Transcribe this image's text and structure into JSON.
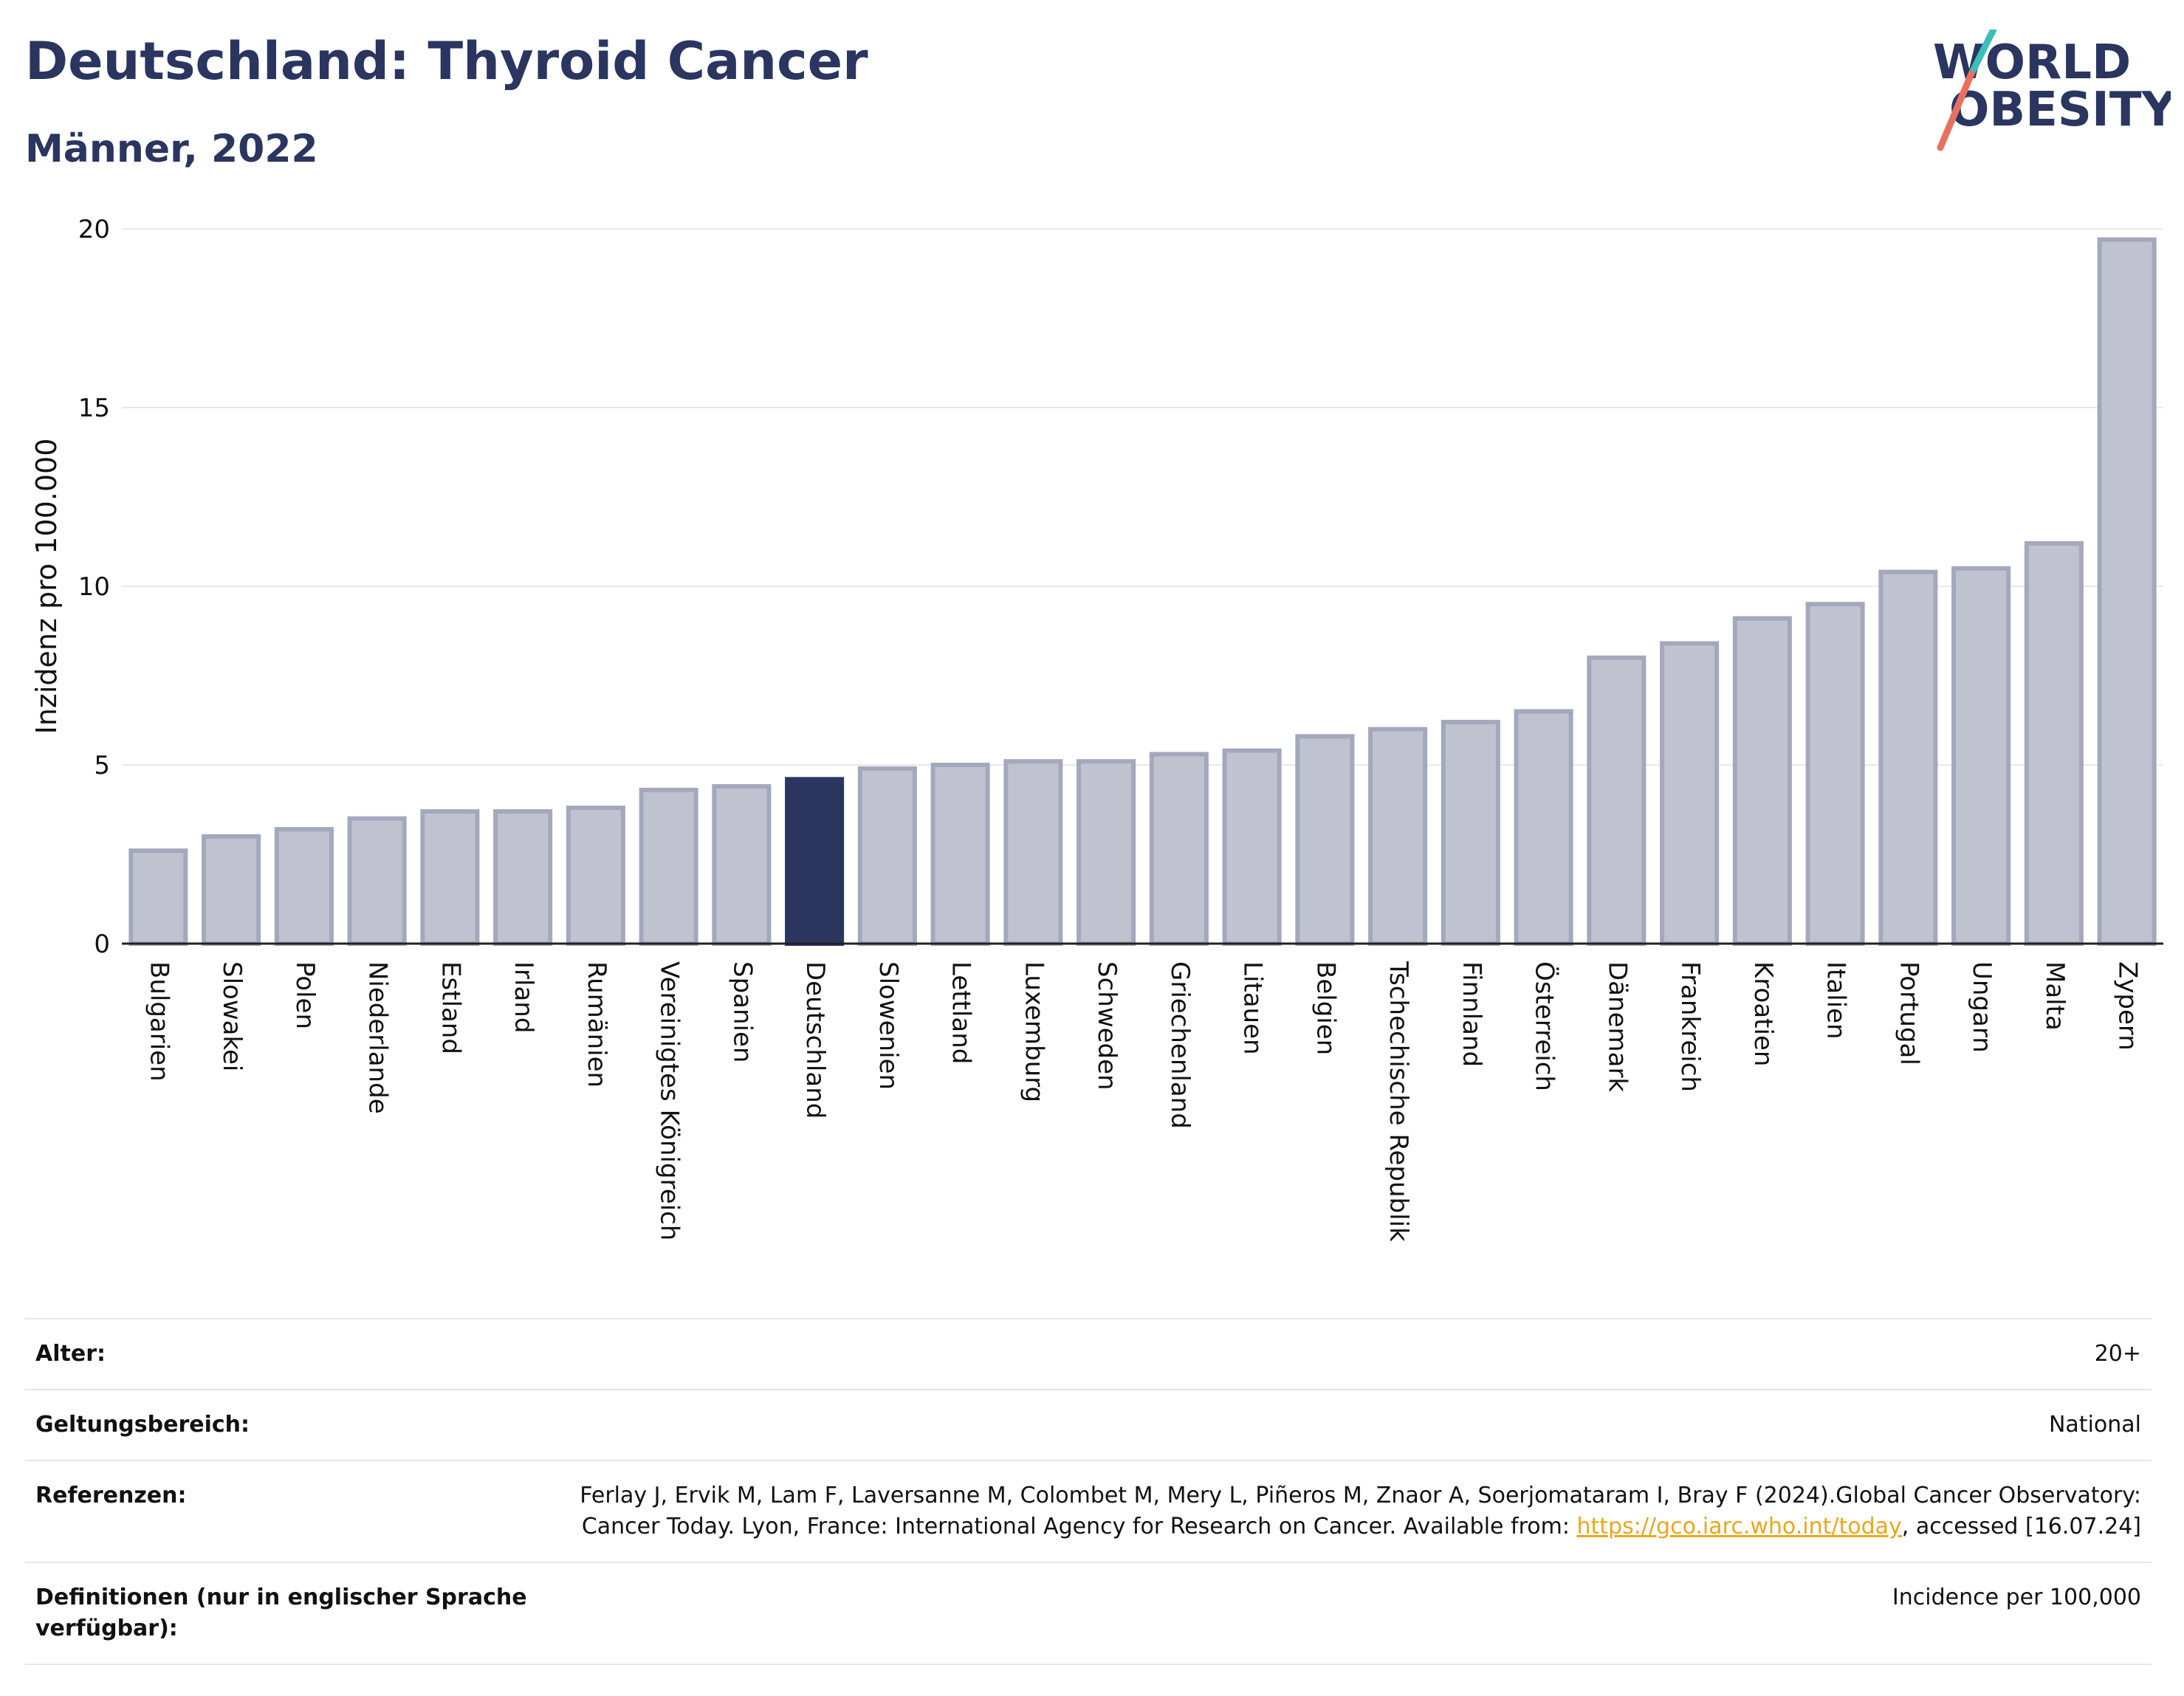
{
  "header": {
    "title": "Deutschland: Thyroid Cancer",
    "subtitle": "Männer, 2022",
    "logo_line1": "WORLD",
    "logo_line2": "OBESITY"
  },
  "colors": {
    "bar": "#c0c3cf",
    "bar_stroke": "#a3a8bd",
    "highlight": "#2a3560",
    "grid": "#e8e8e8",
    "logo_teal": "#3cbfb9",
    "logo_coral": "#e8705e"
  },
  "chart_data": {
    "type": "bar",
    "ylabel": "Inzidenz pro 100.000",
    "ylim": [
      0,
      20
    ],
    "yticks": [
      0,
      5,
      10,
      15,
      20
    ],
    "grid": true,
    "highlight": "Deutschland",
    "categories": [
      "Bulgarien",
      "Slowakei",
      "Polen",
      "Niederlande",
      "Estland",
      "Irland",
      "Rumänien",
      "Vereinigtes Königreich",
      "Spanien",
      "Deutschland",
      "Slowenien",
      "Lettland",
      "Luxemburg",
      "Schweden",
      "Griechenland",
      "Litauen",
      "Belgien",
      "Tschechische Republik",
      "Finnland",
      "Österreich",
      "Dänemark",
      "Frankreich",
      "Kroatien",
      "Italien",
      "Portugal",
      "Ungarn",
      "Malta",
      "Zypern"
    ],
    "values": [
      2.6,
      3.0,
      3.2,
      3.5,
      3.7,
      3.7,
      3.8,
      4.3,
      4.4,
      4.6,
      4.9,
      5.0,
      5.1,
      5.1,
      5.3,
      5.4,
      5.8,
      6.0,
      6.2,
      6.5,
      8.0,
      8.4,
      9.1,
      9.5,
      10.4,
      10.5,
      11.2,
      19.7
    ]
  },
  "info": {
    "age_label": "Alter:",
    "age_value": "20+",
    "scope_label": "Geltungsbereich:",
    "scope_value": "National",
    "ref_label": "Referenzen:",
    "ref_text": "Ferlay J, Ervik M, Lam F, Laversanne M, Colombet M, Mery L, Piñeros M, Znaor A, Soerjomataram I, Bray F (2024).Global Cancer Observatory: Cancer Today. Lyon, France: International Agency for Research on Cancer. Available from: ",
    "ref_link": "https://gco.iarc.who.int/today",
    "ref_tail": ", accessed [16.07.24]",
    "def_label": "Definitionen (nur in englischer Sprache verfügbar):",
    "def_value": "Incidence per 100,000"
  }
}
